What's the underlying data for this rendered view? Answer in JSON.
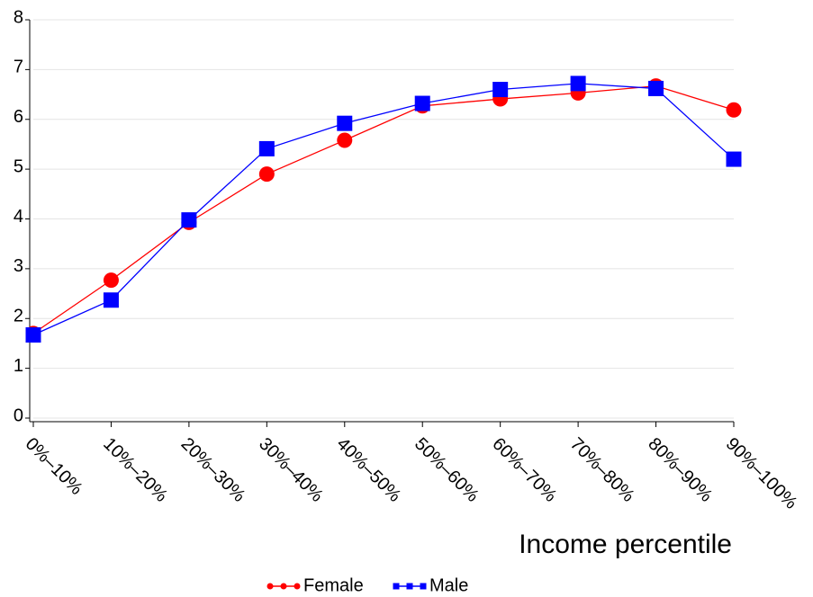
{
  "chart_data": {
    "type": "line",
    "x_label": "Income percentile",
    "categories": [
      "0%–10%",
      "10%–20%",
      "20%–30%",
      "30%–40%",
      "40%–50%",
      "50%–60%",
      "60%–70%",
      "70%–80%",
      "80%–90%",
      "90%–100%"
    ],
    "series": [
      {
        "name": "Female",
        "color": "#ff0000",
        "marker": "circle",
        "values": [
          1.7,
          2.77,
          3.93,
          4.9,
          5.58,
          6.27,
          6.41,
          6.53,
          6.67,
          6.19
        ]
      },
      {
        "name": "Male",
        "color": "#0000ff",
        "marker": "square",
        "values": [
          1.67,
          2.37,
          3.98,
          5.41,
          5.92,
          6.32,
          6.6,
          6.72,
          6.62,
          5.2
        ]
      }
    ],
    "ylim": [
      0,
      8
    ],
    "yticks": [
      0,
      1,
      2,
      3,
      4,
      5,
      6,
      7,
      8
    ],
    "grid": true
  }
}
